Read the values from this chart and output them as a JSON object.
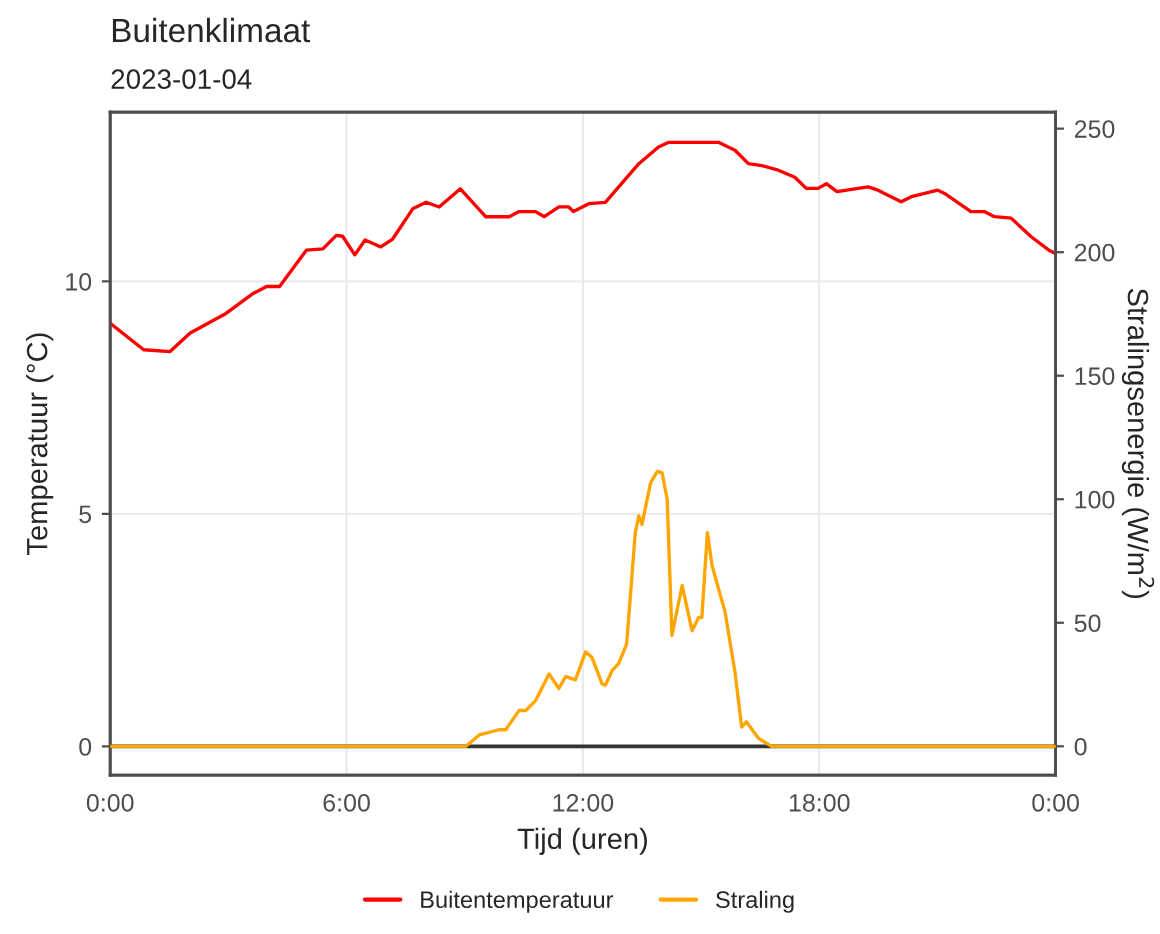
{
  "chart_data": {
    "type": "line",
    "title": "Buitenklimaat",
    "subtitle": "2023-01-04",
    "xlabel": "Tijd (uren)",
    "ylabel": "Temperatuur (°C)",
    "y2label": "Stralingsenergie (W/m$^{2}$)",
    "xlim": [
      0,
      24
    ],
    "xticks": [
      {
        "value": 0,
        "label": "0:00"
      },
      {
        "value": 6,
        "label": "6:00"
      },
      {
        "value": 12,
        "label": "12:00"
      },
      {
        "value": 18,
        "label": "18:00"
      },
      {
        "value": 24,
        "label": "0:00"
      }
    ],
    "ylim": [
      -0.62,
      13.64
    ],
    "yticks": [
      0,
      5,
      10
    ],
    "y2lim": [
      -11.7,
      256.7
    ],
    "y2ticks": [
      0,
      50,
      100,
      150,
      200,
      250
    ],
    "grid": true,
    "legend": "bottom",
    "ref_lines": [
      {
        "axis": "y",
        "value": 0,
        "color": "#333333"
      }
    ],
    "series": [
      {
        "name": "Buitentemperatuur",
        "color": "#ff0000",
        "x": [
          0,
          0.85,
          1.52,
          2.03,
          2.94,
          3.63,
          3.97,
          4.3,
          4.98,
          5.4,
          5.74,
          5.9,
          6.21,
          6.47,
          6.87,
          7.17,
          7.68,
          8.02,
          8.35,
          8.89,
          9.53,
          10.13,
          10.38,
          10.8,
          11.02,
          11.39,
          11.64,
          11.76,
          12.15,
          12.57,
          13.42,
          13.92,
          14.18,
          15.44,
          15.86,
          16.2,
          16.54,
          16.96,
          17.38,
          17.67,
          17.97,
          18.18,
          18.45,
          19.24,
          19.49,
          20.08,
          20.34,
          21.01,
          21.18,
          21.85,
          22.19,
          22.45,
          22.87,
          23.38,
          23.83,
          24
        ],
        "values": [
          9.1,
          8.53,
          8.49,
          8.89,
          9.31,
          9.74,
          9.89,
          9.89,
          10.67,
          10.7,
          10.99,
          10.97,
          10.57,
          10.89,
          10.74,
          10.91,
          11.56,
          11.7,
          11.6,
          11.99,
          11.39,
          11.39,
          11.5,
          11.5,
          11.39,
          11.6,
          11.6,
          11.5,
          11.67,
          11.7,
          12.53,
          12.89,
          12.99,
          12.99,
          12.82,
          12.53,
          12.49,
          12.39,
          12.24,
          12.0,
          12.0,
          12.1,
          11.93,
          12.03,
          11.96,
          11.71,
          11.82,
          11.96,
          11.89,
          11.5,
          11.5,
          11.39,
          11.36,
          10.96,
          10.67,
          10.6
        ]
      },
      {
        "name": "Straling",
        "color": "#ffa500",
        "axis": "y2",
        "x": [
          0,
          9.03,
          9.37,
          9.87,
          10.04,
          10.38,
          10.55,
          10.8,
          11.14,
          11.39,
          11.56,
          11.81,
          12.07,
          12.23,
          12.49,
          12.57,
          12.74,
          12.91,
          13.11,
          13.33,
          13.42,
          13.5,
          13.72,
          13.89,
          14.01,
          14.14,
          14.26,
          14.52,
          14.77,
          14.94,
          15.02,
          15.16,
          15.28,
          15.61,
          15.86,
          16.03,
          16.15,
          16.46,
          16.79,
          24
        ],
        "values": [
          0,
          0,
          4.6,
          6.7,
          6.7,
          14.5,
          14.5,
          18.5,
          29.3,
          23.4,
          28.2,
          26.9,
          38.2,
          36.0,
          25.2,
          24.7,
          30.6,
          33.6,
          41.4,
          86.5,
          93.3,
          89.8,
          106.7,
          111.3,
          110.7,
          100,
          44.9,
          65.1,
          46.8,
          52.2,
          52.2,
          86.5,
          73.1,
          54.3,
          30.1,
          7.8,
          9.9,
          3.2,
          0,
          0
        ]
      }
    ]
  }
}
